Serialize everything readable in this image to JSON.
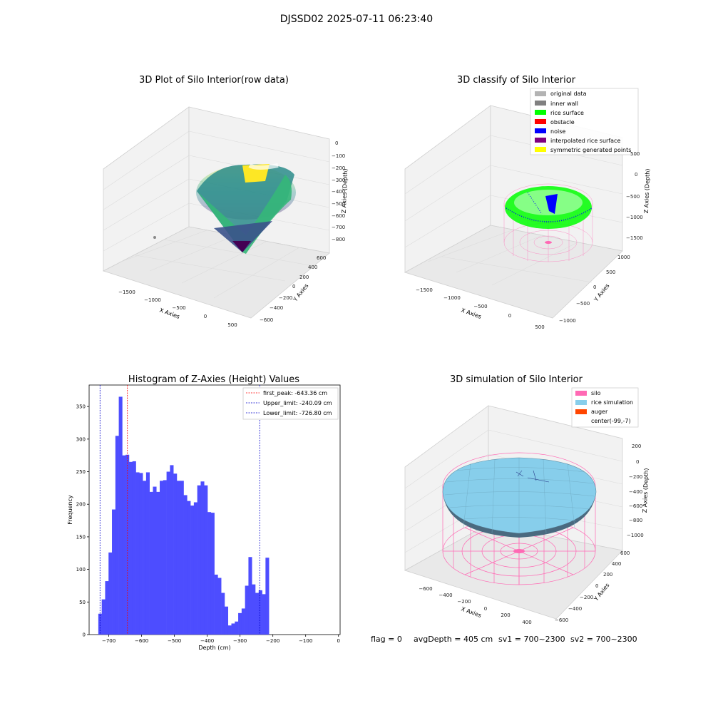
{
  "figure": {
    "suptitle": "DJSSD02 2025-07-11 06:23:40",
    "status_line": {
      "flag": "flag = 0",
      "avg_depth": "avgDepth = 405 cm",
      "sv1": "sv1 = 700~2300",
      "sv2": "sv2 = 700~2300"
    }
  },
  "colors": {
    "hist_bar": "#4d4dff",
    "first_peak": "#ff0000",
    "limit_line": "#0000cc",
    "original_data": "#b3b3b3",
    "inner_wall": "#808080",
    "rice_surface": "#00ff00",
    "obstacle": "#ff0000",
    "noise": "#0000ff",
    "interpolated_rice_surface": "#800080",
    "symmetric_generated_points": "#ffff00",
    "silo": "#ff69b4",
    "rice_simulation": "#87ceeb",
    "auger": "#ff4500"
  },
  "chart_data": [
    {
      "type": "scatter",
      "title": "3D Plot of Silo Interior(row data)",
      "xlabel": "X Axies",
      "ylabel": "Y Axies",
      "zlabel": "Z Axies (Depth)",
      "x_ticks": [
        "−1500",
        "−1000",
        "−500",
        "0",
        "500"
      ],
      "y_ticks": [
        "−600",
        "−400",
        "−200",
        "0",
        "200",
        "400",
        "600"
      ],
      "z_ticks": [
        "0",
        "−100",
        "−200",
        "−300",
        "−400",
        "−500",
        "−600",
        "−700",
        "−800"
      ],
      "zlim": [
        -830,
        0
      ],
      "colormap": "viridis"
    },
    {
      "type": "scatter",
      "title": "3D classify of Silo Interior",
      "xlabel": "X Axies",
      "ylabel": "Y Axies",
      "zlabel": "Z Axies (Depth)",
      "x_ticks": [
        "−1500",
        "−1000",
        "−500",
        "0",
        "500"
      ],
      "y_ticks": [
        "−1000",
        "−500",
        "0",
        "500",
        "1000"
      ],
      "z_ticks": [
        "500",
        "0",
        "−500",
        "−1000",
        "−1500"
      ],
      "legend": [
        {
          "label": "original data",
          "color": "#b3b3b3"
        },
        {
          "label": "inner wall",
          "color": "#808080"
        },
        {
          "label": "rice surface",
          "color": "#00ff00"
        },
        {
          "label": "obstacle",
          "color": "#ff0000"
        },
        {
          "label": "noise",
          "color": "#0000ff"
        },
        {
          "label": "interpolated rice surface",
          "color": "#800080"
        },
        {
          "label": "symmetric generated points",
          "color": "#ffff00"
        }
      ]
    },
    {
      "type": "bar",
      "title": "Histogram of Z-Axies (Height) Values",
      "xlabel": "Depth (cm)",
      "ylabel": "Frequency",
      "xlim": [
        -760,
        5
      ],
      "ylim": [
        0,
        383
      ],
      "x_ticks": [
        -700,
        -600,
        -500,
        -400,
        -300,
        -200,
        -100,
        0
      ],
      "y_ticks": [
        0,
        50,
        100,
        150,
        200,
        250,
        300,
        350
      ],
      "bin_width": 10.4,
      "bin_start": -732,
      "values": [
        32,
        54,
        82,
        126,
        192,
        305,
        365,
        275,
        276,
        265,
        266,
        249,
        248,
        236,
        249,
        219,
        227,
        219,
        236,
        237,
        250,
        260,
        247,
        236,
        236,
        214,
        205,
        198,
        203,
        229,
        235,
        229,
        188,
        187,
        92,
        87,
        64,
        43,
        14,
        17,
        20,
        33,
        40,
        75,
        119,
        77,
        64,
        68,
        62,
        118
      ],
      "lines": [
        {
          "label": "first_peak: -643.36 cm",
          "value": -643.36,
          "color": "#ff0000"
        },
        {
          "label": "Upper_limit: -240.09 cm",
          "value": -240.09,
          "color": "#0000cc"
        },
        {
          "label": "Lower_limit: -726.80 cm",
          "value": -726.8,
          "color": "#0000cc"
        }
      ]
    },
    {
      "type": "scatter",
      "title": "3D simulation of Silo Interior",
      "xlabel": "X Axies",
      "ylabel": "Y Axies",
      "zlabel": "Z Axies (Depth)",
      "x_ticks": [
        "−600",
        "−400",
        "−200",
        "0",
        "200",
        "400"
      ],
      "y_ticks": [
        "−600",
        "−400",
        "−200",
        "0",
        "200",
        "400",
        "600"
      ],
      "z_ticks": [
        "200",
        "0",
        "−200",
        "−400",
        "−600",
        "−800",
        "−1000"
      ],
      "legend": [
        {
          "label": "silo",
          "color": "#ff69b4"
        },
        {
          "label": "rice simulation",
          "color": "#87ceeb"
        },
        {
          "label": "auger",
          "color": "#ff4500"
        },
        {
          "label": "center(-99,-7)",
          "color": ""
        }
      ]
    }
  ]
}
